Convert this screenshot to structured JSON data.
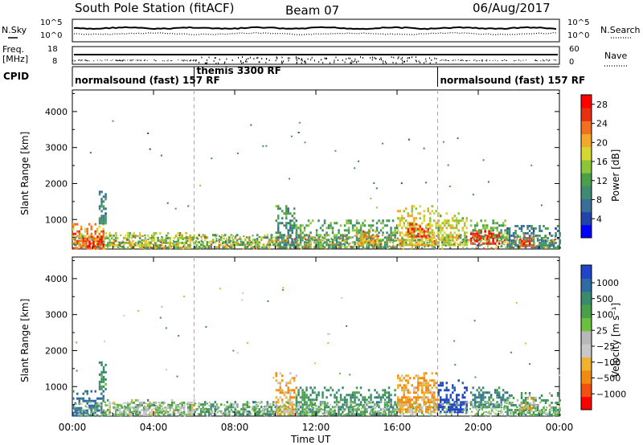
{
  "header": {
    "station": "South Pole Station (fitACF)",
    "beam": "Beam 07",
    "date": "06/Aug/2017"
  },
  "noise_panel": {
    "left_label": "N.Sky",
    "right_label": "N.Search",
    "left_ticks": [
      "10^5",
      "10^0"
    ],
    "right_ticks": [
      "10^5",
      "10^0"
    ]
  },
  "freq_panel": {
    "left_label_1": "Freq.",
    "left_label_2": "[MHz]",
    "right_label": "Nave",
    "left_ticks": [
      "18",
      "8"
    ],
    "right_ticks": [
      "60",
      "0"
    ]
  },
  "cpid": {
    "label": "CPID",
    "segments": [
      {
        "text": "normalsound (fast) 157 RF",
        "start": 0
      },
      {
        "text": "themis 3300 RF",
        "start": 6
      },
      {
        "text": "normalsound (fast) 157 RF",
        "start": 18
      }
    ]
  },
  "x_axis": {
    "title": "Time UT",
    "ticks": [
      "00:00",
      "04:00",
      "08:00",
      "12:00",
      "16:00",
      "20:00",
      "00:00"
    ]
  },
  "colors": {
    "power_scale": [
      "#0000ff",
      "#2244aa",
      "#3a6e9a",
      "#3f8a72",
      "#4aa048",
      "#8ec63a",
      "#d6d832",
      "#f2a82a",
      "#f07020",
      "#e83010",
      "#ff0000"
    ],
    "velocity_scale": [
      "#ff0000",
      "#f05010",
      "#f08a10",
      "#f0b030",
      "#c8c8c8",
      "#b8b8b8",
      "#6cc040",
      "#4aa048",
      "#3a8a6e",
      "#2f6aa0",
      "#2244c8"
    ]
  },
  "chart_data": [
    {
      "type": "heatmap",
      "quantity": "power",
      "ylabel": "Slant Range [km]",
      "yticks": [
        "1000",
        "2000",
        "3000",
        "4000"
      ],
      "xlim": [
        0,
        24
      ],
      "ylim": [
        180,
        4600
      ],
      "colorbar": {
        "label": "Power [dB]",
        "ticks": [
          "4",
          "8",
          "12",
          "16",
          "20",
          "24",
          "28"
        ],
        "range": [
          0,
          30
        ]
      },
      "blocks": [
        {
          "t0": 0.0,
          "t1": 1.5,
          "r0": 200,
          "r1": 900,
          "level": 22
        },
        {
          "t0": 0.6,
          "t1": 1.5,
          "r0": 220,
          "r1": 550,
          "level": 29
        },
        {
          "t0": 1.3,
          "t1": 1.6,
          "r0": 900,
          "r1": 1800,
          "level": 9
        },
        {
          "t0": 1.6,
          "t1": 6.0,
          "r0": 200,
          "r1": 650,
          "level": 16
        },
        {
          "t0": 6.0,
          "t1": 10.0,
          "r0": 200,
          "r1": 600,
          "level": 14
        },
        {
          "t0": 10.0,
          "t1": 11.0,
          "r0": 200,
          "r1": 1400,
          "level": 10
        },
        {
          "t0": 11.0,
          "t1": 16.0,
          "r0": 200,
          "r1": 1000,
          "level": 12
        },
        {
          "t0": 14.0,
          "t1": 15.0,
          "r0": 350,
          "r1": 700,
          "level": 21
        },
        {
          "t0": 16.0,
          "t1": 18.0,
          "r0": 300,
          "r1": 1400,
          "level": 18
        },
        {
          "t0": 16.5,
          "t1": 17.5,
          "r0": 500,
          "r1": 900,
          "level": 25
        },
        {
          "t0": 18.0,
          "t1": 19.4,
          "r0": 300,
          "r1": 1200,
          "level": 17
        },
        {
          "t0": 19.6,
          "t1": 21.4,
          "r0": 400,
          "r1": 1000,
          "level": 13
        },
        {
          "t0": 19.6,
          "t1": 21.0,
          "r0": 300,
          "r1": 700,
          "level": 28
        },
        {
          "t0": 21.4,
          "t1": 24.0,
          "r0": 200,
          "r1": 850,
          "level": 9
        },
        {
          "t0": 22.0,
          "t1": 22.6,
          "r0": 250,
          "r1": 500,
          "level": 26
        }
      ]
    },
    {
      "type": "heatmap",
      "quantity": "velocity",
      "ylabel": "Slant Range [km]",
      "yticks": [
        "1000",
        "2000",
        "3000",
        "4000"
      ],
      "xlim": [
        0,
        24
      ],
      "ylim": [
        180,
        4600
      ],
      "colorbar": {
        "label": "Velocity [m s⁻¹]",
        "ticks": [
          "1000",
          "500",
          "100",
          "25",
          "−25",
          "−100",
          "−500",
          "−1000"
        ]
      },
      "blocks": [
        {
          "t0": 0.0,
          "t1": 1.5,
          "r0": 200,
          "r1": 900,
          "level": 300
        },
        {
          "t0": 1.3,
          "t1": 1.6,
          "r0": 900,
          "r1": 1700,
          "level": 120
        },
        {
          "t0": 1.6,
          "t1": 6.0,
          "r0": 200,
          "r1": 650,
          "level": 0
        },
        {
          "t0": 6.0,
          "t1": 10.0,
          "r0": 200,
          "r1": 600,
          "level": 150
        },
        {
          "t0": 10.0,
          "t1": 11.0,
          "r0": 200,
          "r1": 1400,
          "level": -150
        },
        {
          "t0": 11.0,
          "t1": 16.0,
          "r0": 200,
          "r1": 1000,
          "level": 150
        },
        {
          "t0": 16.0,
          "t1": 18.0,
          "r0": 300,
          "r1": 1400,
          "level": -200
        },
        {
          "t0": 18.0,
          "t1": 19.4,
          "r0": 300,
          "r1": 1200,
          "level": 600
        },
        {
          "t0": 19.6,
          "t1": 21.4,
          "r0": 400,
          "r1": 1000,
          "level": 200
        },
        {
          "t0": 21.4,
          "t1": 24.0,
          "r0": 200,
          "r1": 850,
          "level": 100
        },
        {
          "t0": 22.0,
          "t1": 22.8,
          "r0": 300,
          "r1": 700,
          "level": -150
        }
      ]
    }
  ]
}
